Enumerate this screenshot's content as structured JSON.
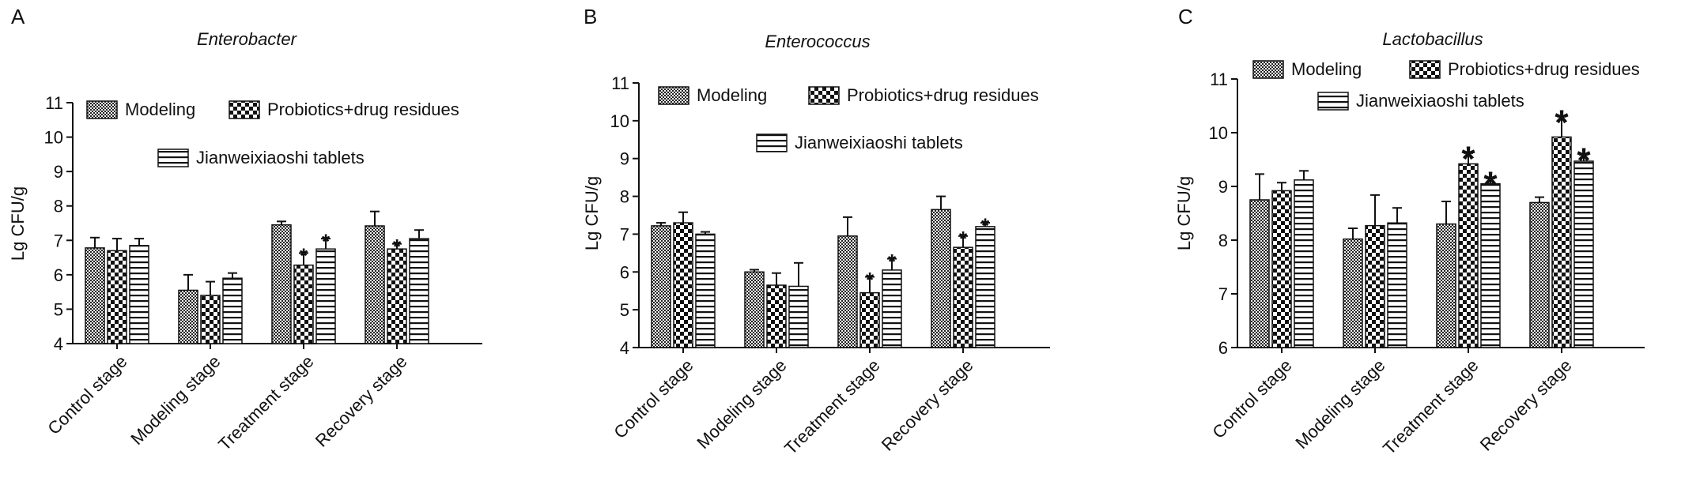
{
  "figure": {
    "background": "#ffffff",
    "bar_outline_color": "#111111"
  },
  "chart_data": [
    {
      "panel_label": "A",
      "type": "bar",
      "title": "Enterobacter",
      "ylabel": "Lg CFU/g",
      "xlabel": "",
      "ylim": [
        4,
        11
      ],
      "yticks": [
        4,
        5,
        6,
        7,
        8,
        9,
        10,
        11
      ],
      "categories": [
        "Control stage",
        "Modeling stage",
        "Treatment stage",
        "Recovery stage"
      ],
      "legend_placement": "top",
      "grid": false,
      "series": [
        {
          "name": "Modeling",
          "pattern": "fine-checker",
          "values": [
            6.78,
            5.55,
            7.45,
            7.42
          ],
          "errors": [
            0.3,
            0.45,
            0.1,
            0.42
          ],
          "significance": [
            "",
            "",
            "",
            ""
          ]
        },
        {
          "name": "Probiotics+drug residues",
          "pattern": "large-checker",
          "values": [
            6.7,
            5.4,
            6.28,
            6.75
          ],
          "errors": [
            0.35,
            0.4,
            0.35,
            0.15
          ],
          "significance": [
            "",
            "",
            "*",
            "*"
          ]
        },
        {
          "name": "Jianweixiaoshi tablets",
          "pattern": "horizontal-lines",
          "values": [
            6.85,
            5.9,
            6.75,
            7.05
          ],
          "errors": [
            0.2,
            0.15,
            0.3,
            0.25
          ],
          "significance": [
            "",
            "",
            "*",
            ""
          ]
        }
      ]
    },
    {
      "panel_label": "B",
      "type": "bar",
      "title": "Enterococcus",
      "ylabel": "Lg CFU/g",
      "xlabel": "",
      "ylim": [
        4,
        11
      ],
      "yticks": [
        4,
        5,
        6,
        7,
        8,
        9,
        10,
        11
      ],
      "categories": [
        "Control stage",
        "Modeling stage",
        "Treatment stage",
        "Recovery stage"
      ],
      "legend_placement": "top",
      "grid": false,
      "series": [
        {
          "name": "Modeling",
          "pattern": "fine-checker",
          "values": [
            7.22,
            6.0,
            6.95,
            7.65
          ],
          "errors": [
            0.08,
            0.06,
            0.5,
            0.35
          ],
          "significance": [
            "",
            "",
            "",
            ""
          ]
        },
        {
          "name": "Probiotics+drug residues",
          "pattern": "large-checker",
          "values": [
            7.3,
            5.65,
            5.45,
            6.65
          ],
          "errors": [
            0.28,
            0.32,
            0.42,
            0.3
          ],
          "significance": [
            "",
            "",
            "*",
            "*"
          ]
        },
        {
          "name": "Jianweixiaoshi tablets",
          "pattern": "horizontal-lines",
          "values": [
            7.0,
            5.62,
            6.05,
            7.2
          ],
          "errors": [
            0.06,
            0.62,
            0.3,
            0.1
          ],
          "significance": [
            "",
            "",
            "*",
            "*"
          ]
        }
      ]
    },
    {
      "panel_label": "C",
      "type": "bar",
      "title": "Lactobacillus",
      "ylabel": "Lg CFU/g",
      "xlabel": "",
      "ylim": [
        6,
        11
      ],
      "yticks": [
        6,
        7,
        8,
        9,
        10,
        11
      ],
      "categories": [
        "Control stage",
        "Modeling stage",
        "Treatment stage",
        "Recovery stage"
      ],
      "legend_placement": "top",
      "grid": false,
      "series": [
        {
          "name": "Modeling",
          "pattern": "fine-checker",
          "values": [
            8.75,
            8.02,
            8.3,
            8.7
          ],
          "errors": [
            0.48,
            0.2,
            0.42,
            0.1
          ],
          "significance": [
            "",
            "",
            "",
            ""
          ]
        },
        {
          "name": "Probiotics+drug residues",
          "pattern": "large-checker",
          "values": [
            8.92,
            8.27,
            9.42,
            9.92
          ],
          "errors": [
            0.15,
            0.57,
            0.2,
            0.38
          ],
          "significance": [
            "",
            "",
            "*",
            "*"
          ]
        },
        {
          "name": "Jianweixiaoshi tablets",
          "pattern": "horizontal-lines",
          "values": [
            9.12,
            8.32,
            9.05,
            9.47
          ],
          "errors": [
            0.17,
            0.28,
            0.1,
            0.12
          ],
          "significance": [
            "",
            "",
            "*",
            "*"
          ]
        }
      ]
    }
  ]
}
